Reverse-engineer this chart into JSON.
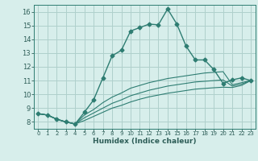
{
  "xlabel": "Humidex (Indice chaleur)",
  "background_color": "#d7eeeb",
  "grid_color": "#afd0cc",
  "line_color": "#2e7d72",
  "xlim": [
    -0.5,
    23.5
  ],
  "ylim": [
    7.5,
    16.5
  ],
  "xticks": [
    0,
    1,
    2,
    3,
    4,
    5,
    6,
    7,
    8,
    9,
    10,
    11,
    12,
    13,
    14,
    15,
    16,
    17,
    18,
    19,
    20,
    21,
    22,
    23
  ],
  "yticks": [
    8,
    9,
    10,
    11,
    12,
    13,
    14,
    15,
    16
  ],
  "lines": [
    {
      "x": [
        0,
        1,
        2,
        3,
        4,
        5,
        6,
        7,
        8,
        9,
        10,
        11,
        12,
        13,
        14,
        15,
        16,
        17,
        18,
        19,
        20,
        21,
        22,
        23
      ],
      "y": [
        8.6,
        8.5,
        8.2,
        8.0,
        7.85,
        8.7,
        9.6,
        11.2,
        12.8,
        13.2,
        14.6,
        14.85,
        15.1,
        15.05,
        16.2,
        15.1,
        13.5,
        12.5,
        12.5,
        11.8,
        10.8,
        11.05,
        11.2,
        11.0
      ],
      "marker": true,
      "lw": 1.0
    },
    {
      "x": [
        0,
        1,
        2,
        3,
        4,
        5,
        6,
        7,
        8,
        9,
        10,
        11,
        12,
        13,
        14,
        15,
        16,
        17,
        18,
        19,
        20,
        21,
        22,
        23
      ],
      "y": [
        8.6,
        8.5,
        8.2,
        8.0,
        7.85,
        8.5,
        8.9,
        9.4,
        9.8,
        10.1,
        10.45,
        10.65,
        10.85,
        11.0,
        11.15,
        11.25,
        11.35,
        11.45,
        11.55,
        11.6,
        11.65,
        10.7,
        10.85,
        11.0
      ],
      "marker": false,
      "lw": 0.8
    },
    {
      "x": [
        0,
        1,
        2,
        3,
        4,
        5,
        6,
        7,
        8,
        9,
        10,
        11,
        12,
        13,
        14,
        15,
        16,
        17,
        18,
        19,
        20,
        21,
        22,
        23
      ],
      "y": [
        8.6,
        8.5,
        8.2,
        8.0,
        7.85,
        8.3,
        8.65,
        9.0,
        9.35,
        9.6,
        9.9,
        10.1,
        10.3,
        10.45,
        10.6,
        10.7,
        10.8,
        10.9,
        10.95,
        11.0,
        11.05,
        10.6,
        10.75,
        11.0
      ],
      "marker": false,
      "lw": 0.8
    },
    {
      "x": [
        0,
        1,
        2,
        3,
        4,
        5,
        6,
        7,
        8,
        9,
        10,
        11,
        12,
        13,
        14,
        15,
        16,
        17,
        18,
        19,
        20,
        21,
        22,
        23
      ],
      "y": [
        8.6,
        8.5,
        8.2,
        8.0,
        7.85,
        8.1,
        8.4,
        8.7,
        9.0,
        9.2,
        9.45,
        9.65,
        9.82,
        9.95,
        10.08,
        10.18,
        10.28,
        10.38,
        10.43,
        10.48,
        10.52,
        10.5,
        10.65,
        11.0
      ],
      "marker": false,
      "lw": 0.8
    }
  ]
}
